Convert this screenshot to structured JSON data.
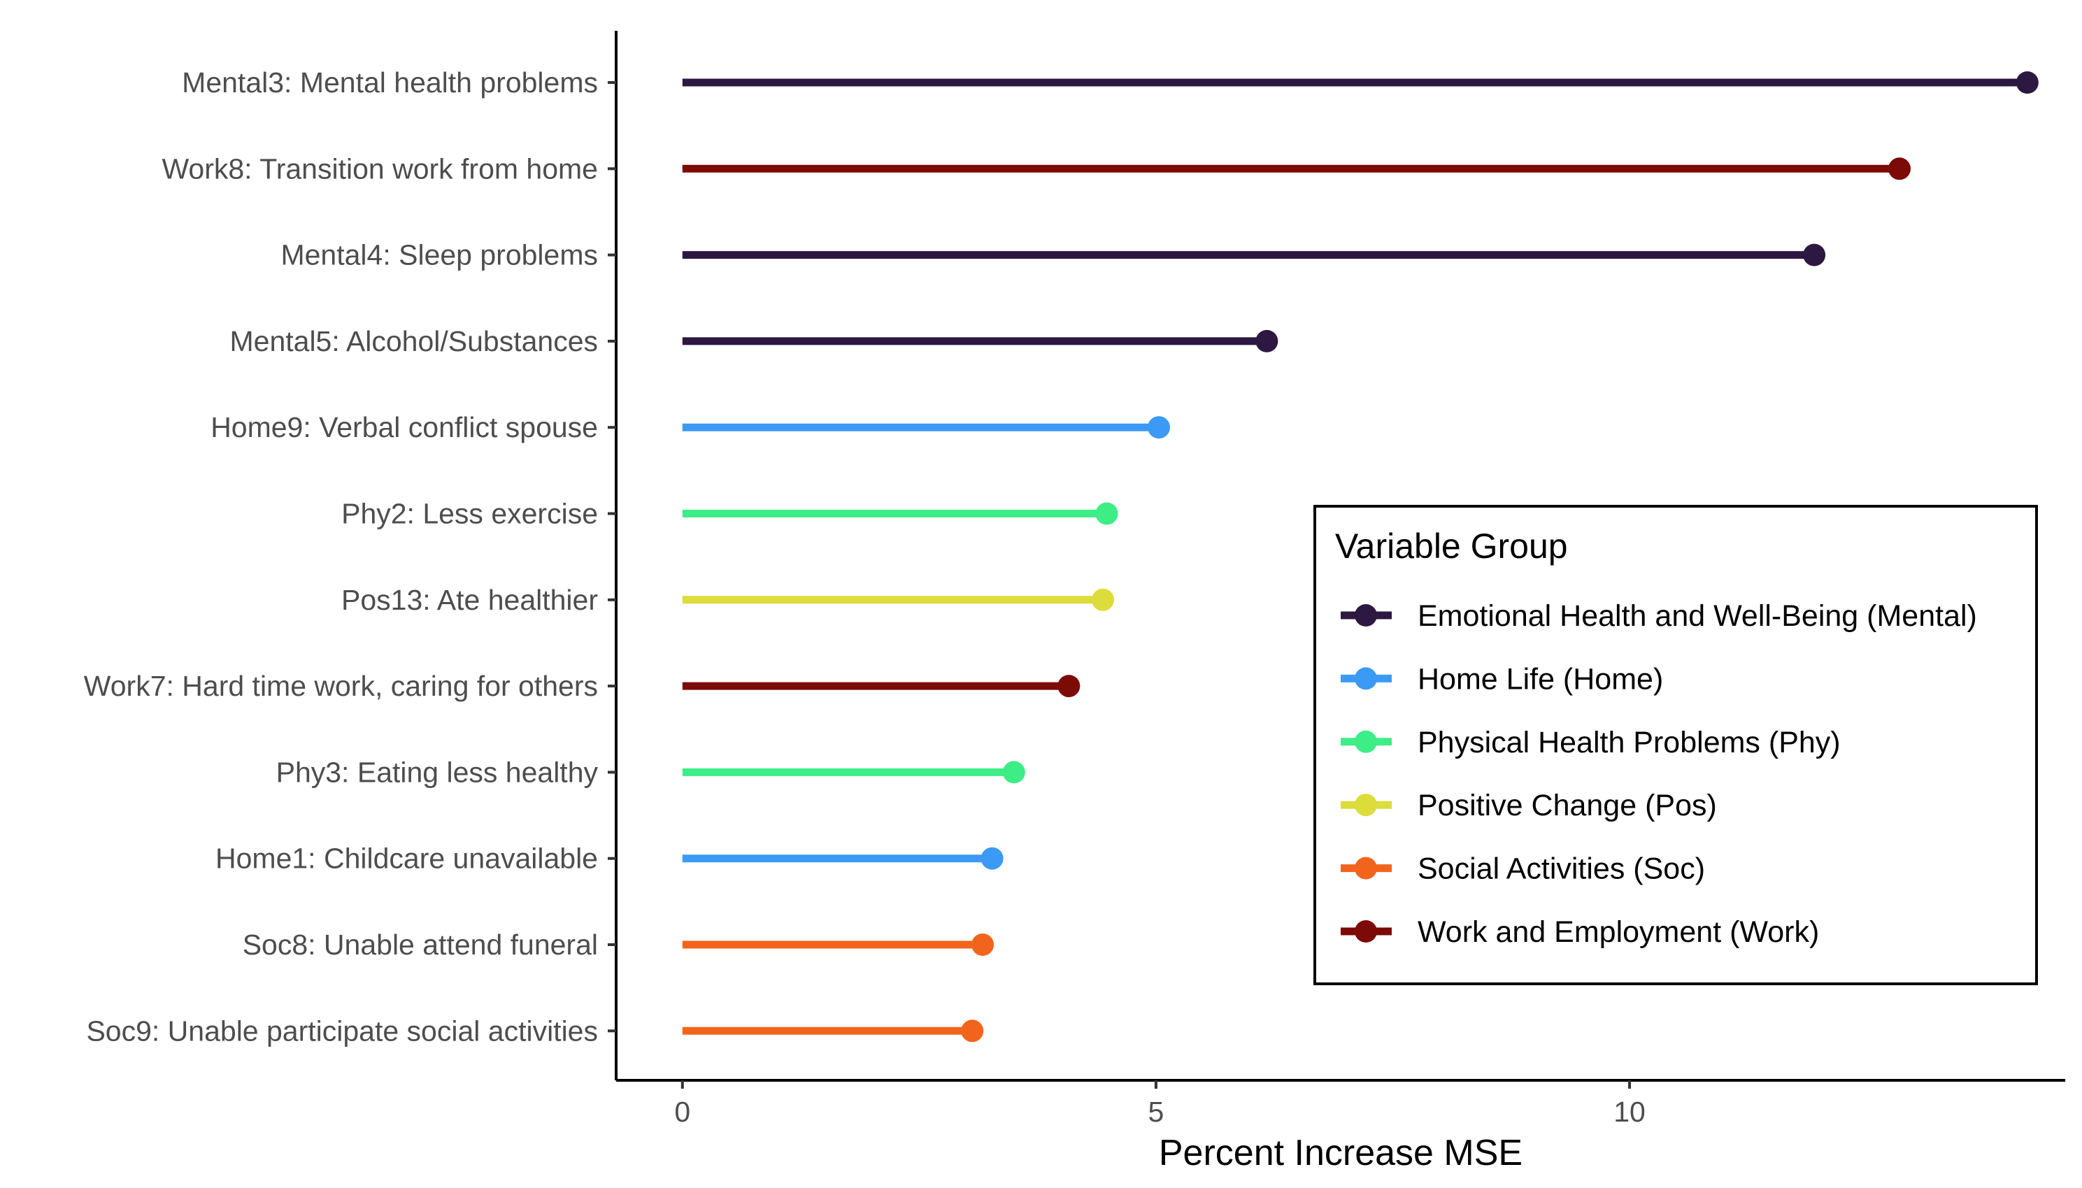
{
  "chart_data": {
    "type": "lollipop",
    "title": "",
    "xlabel": "Percent Increase MSE",
    "ylabel": "",
    "xlim": [
      -0.7,
      14.6
    ],
    "x_ticks": [
      0,
      5,
      10
    ],
    "grid": false,
    "items": [
      {
        "label": "Mental3: Mental health problems",
        "value": 14.2,
        "group": "Mental"
      },
      {
        "label": "Work8: Transition work from home",
        "value": 12.85,
        "group": "Work"
      },
      {
        "label": "Mental4: Sleep problems",
        "value": 11.95,
        "group": "Mental"
      },
      {
        "label": "Mental5: Alcohol/Substances",
        "value": 6.17,
        "group": "Mental"
      },
      {
        "label": "Home9: Verbal conflict spouse",
        "value": 5.03,
        "group": "Home"
      },
      {
        "label": "Phy2: Less exercise",
        "value": 4.48,
        "group": "Phy"
      },
      {
        "label": "Pos13: Ate healthier",
        "value": 4.44,
        "group": "Pos"
      },
      {
        "label": "Work7: Hard time work, caring for others",
        "value": 4.08,
        "group": "Work"
      },
      {
        "label": "Phy3: Eating less healthy",
        "value": 3.5,
        "group": "Phy"
      },
      {
        "label": "Home1: Childcare unavailable",
        "value": 3.27,
        "group": "Home"
      },
      {
        "label": "Soc8: Unable attend funeral",
        "value": 3.17,
        "group": "Soc"
      },
      {
        "label": "Soc9: Unable participate social activities",
        "value": 3.06,
        "group": "Soc"
      }
    ],
    "legend": {
      "title": "Variable Group",
      "position": "right",
      "entries": [
        {
          "key": "Mental",
          "label": "Emotional Health and Well-Being (Mental)",
          "color": "#2c1840"
        },
        {
          "key": "Home",
          "label": "Home Life (Home)",
          "color": "#3b9af5"
        },
        {
          "key": "Phy",
          "label": "Physical Health Problems (Phy)",
          "color": "#3ded86"
        },
        {
          "key": "Pos",
          "label": "Positive Change (Pos)",
          "color": "#dcdc3a"
        },
        {
          "key": "Soc",
          "label": "Social Activities (Soc)",
          "color": "#f2641c"
        },
        {
          "key": "Work",
          "label": "Work and Employment (Work)",
          "color": "#7c0a07"
        }
      ]
    }
  }
}
